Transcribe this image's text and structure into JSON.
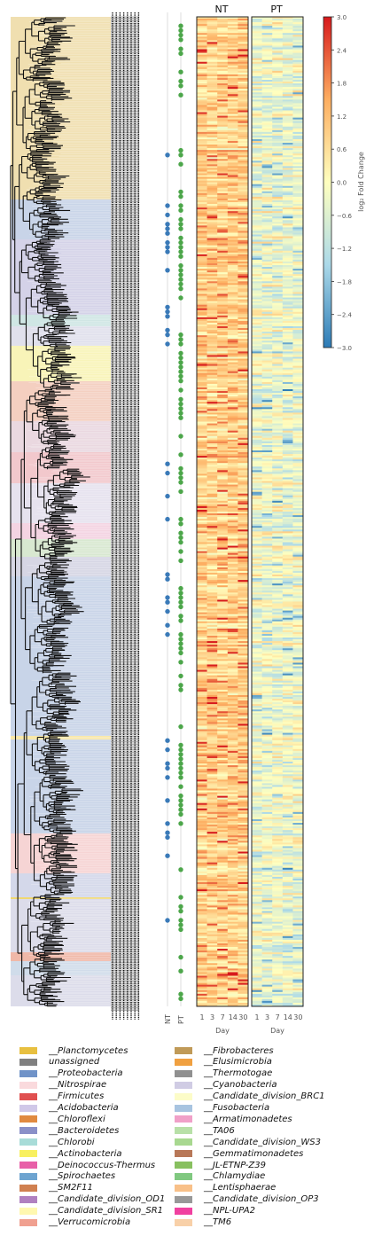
{
  "chart_data": {
    "type": "heatmap",
    "panels": [
      {
        "title": "NT",
        "x_categories": [
          "1",
          "3",
          "7",
          "14",
          "30"
        ],
        "xlabel": "Day"
      },
      {
        "title": "PT",
        "x_categories": [
          "1",
          "3",
          "7",
          "14",
          "30"
        ],
        "xlabel": "Day"
      }
    ],
    "membership_columns": [
      {
        "label": "NT",
        "color": "#3a7ab8"
      },
      {
        "label": "PT",
        "color": "#4ca64a"
      }
    ],
    "colorbar": {
      "label": "log₂ Fold Change",
      "range": [
        -3.0,
        3.0
      ],
      "ticks": [
        "3.0",
        "2.4",
        "1.8",
        "1.2",
        "0.6",
        "0.0",
        "−0.6",
        "−1.2",
        "−1.8",
        "−2.4",
        "−3.0"
      ],
      "colormap": [
        "#2c7bb6",
        "#abd9e9",
        "#ffffbf",
        "#fdae61",
        "#d7191c"
      ]
    },
    "legend": [
      {
        "label": "__Planctomycetes",
        "color": "#e8c040"
      },
      {
        "label": "unassigned",
        "color": "#808080"
      },
      {
        "label": "__Proteobacteria",
        "color": "#7093c8"
      },
      {
        "label": "__Nitrospirae",
        "color": "#fadadd"
      },
      {
        "label": "__Firmicutes",
        "color": "#e05050"
      },
      {
        "label": "__Acidobacteria",
        "color": "#d0c8e8"
      },
      {
        "label": "__Chloroflexi",
        "color": "#e08a40"
      },
      {
        "label": "__Bacteroidetes",
        "color": "#8a90c8"
      },
      {
        "label": "__Chlorobi",
        "color": "#a8dcd8"
      },
      {
        "label": "__Actinobacteria",
        "color": "#f8f060"
      },
      {
        "label": "__Deinococcus-Thermus",
        "color": "#e860a8"
      },
      {
        "label": "__Spirochaetes",
        "color": "#6ea4d0"
      },
      {
        "label": "__SM2F11",
        "color": "#d08050"
      },
      {
        "label": "__Candidate_division_OD1",
        "color": "#b080c0"
      },
      {
        "label": "__Candidate_division_SR1",
        "color": "#fff8b0"
      },
      {
        "label": "__Verrucomicrobia",
        "color": "#f0a090"
      },
      {
        "label": "__Fibrobacteres",
        "color": "#c09a58"
      },
      {
        "label": "__Elusimicrobia",
        "color": "#f0a040"
      },
      {
        "label": "__Thermotogae",
        "color": "#909090"
      },
      {
        "label": "__Cyanobacteria",
        "color": "#d0cce4"
      },
      {
        "label": "__Candidate_division_BRC1",
        "color": "#fcfcc8"
      },
      {
        "label": "__Fusobacteria",
        "color": "#a8c4e0"
      },
      {
        "label": "__Armatimonadetes",
        "color": "#f0a0c8"
      },
      {
        "label": "__TA06",
        "color": "#b8e0a8"
      },
      {
        "label": "__Candidate_division_WS3",
        "color": "#a8d890"
      },
      {
        "label": "__Gemmatimonadetes",
        "color": "#b87858"
      },
      {
        "label": "__JL-ETNP-Z39",
        "color": "#88c060"
      },
      {
        "label": "__Chlamydiae",
        "color": "#80c880"
      },
      {
        "label": "__Lentisphaerae",
        "color": "#f8c088"
      },
      {
        "label": "__Candidate_division_OP3",
        "color": "#989898"
      },
      {
        "label": "__NPL-UPA2",
        "color": "#f040a0"
      },
      {
        "label": "__TM6",
        "color": "#f8d0a8"
      }
    ]
  }
}
